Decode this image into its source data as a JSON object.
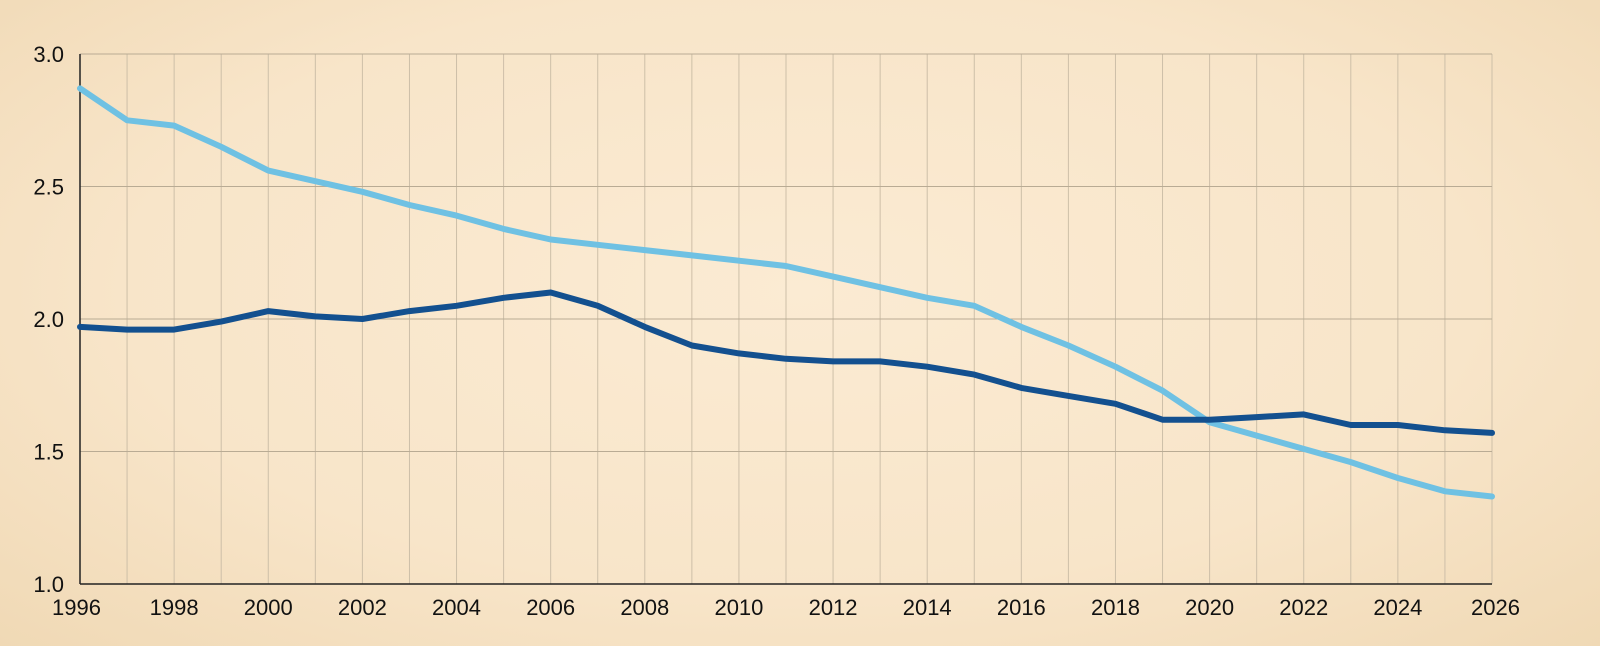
{
  "chart_data": {
    "type": "line",
    "title": "",
    "xlabel": "",
    "ylabel": "",
    "xlim": [
      1996,
      2026
    ],
    "ylim": [
      1.0,
      3.0
    ],
    "grid": true,
    "x_ticks": [
      1996,
      1998,
      2000,
      2002,
      2004,
      2006,
      2008,
      2010,
      2012,
      2014,
      2016,
      2018,
      2020,
      2022,
      2024,
      2026
    ],
    "y_ticks": [
      1.0,
      1.5,
      2.0,
      2.5,
      3.0
    ],
    "x_tick_labels": [
      "1996",
      "1998",
      "2000",
      "2002",
      "2004",
      "2006",
      "2008",
      "2010",
      "2012",
      "2014",
      "2016",
      "2018",
      "2020",
      "2022",
      "2024",
      "2026"
    ],
    "y_tick_labels": [
      "1.0",
      "1.5",
      "2.0",
      "2.5",
      "3.0"
    ],
    "series": [
      {
        "color": "#6fc1e3",
        "x": [
          1996,
          1997,
          1998,
          1999,
          2000,
          2001,
          2002,
          2003,
          2004,
          2005,
          2006,
          2007,
          2008,
          2009,
          2010,
          2011,
          2012,
          2013,
          2014,
          2015,
          2016,
          2017,
          2018,
          2019,
          2020,
          2021,
          2022,
          2023,
          2024,
          2025,
          2026
        ],
        "values": [
          2.87,
          2.75,
          2.73,
          2.65,
          2.56,
          2.52,
          2.48,
          2.43,
          2.39,
          2.34,
          2.3,
          2.28,
          2.26,
          2.24,
          2.22,
          2.2,
          2.16,
          2.12,
          2.08,
          2.05,
          1.97,
          1.9,
          1.82,
          1.73,
          1.61,
          1.56,
          1.51,
          1.46,
          1.4,
          1.35,
          1.33
        ]
      },
      {
        "color": "#13508f",
        "x": [
          1996,
          1997,
          1998,
          1999,
          2000,
          2001,
          2002,
          2003,
          2004,
          2005,
          2006,
          2007,
          2008,
          2009,
          2010,
          2011,
          2012,
          2013,
          2014,
          2015,
          2016,
          2017,
          2018,
          2019,
          2020,
          2021,
          2022,
          2023,
          2024,
          2025,
          2026
        ],
        "values": [
          1.97,
          1.96,
          1.96,
          1.99,
          2.03,
          2.01,
          2.0,
          2.03,
          2.05,
          2.08,
          2.1,
          2.05,
          1.97,
          1.9,
          1.87,
          1.85,
          1.84,
          1.84,
          1.82,
          1.79,
          1.74,
          1.71,
          1.68,
          1.62,
          1.62,
          1.63,
          1.64,
          1.6,
          1.6,
          1.58,
          1.57
        ]
      }
    ]
  }
}
